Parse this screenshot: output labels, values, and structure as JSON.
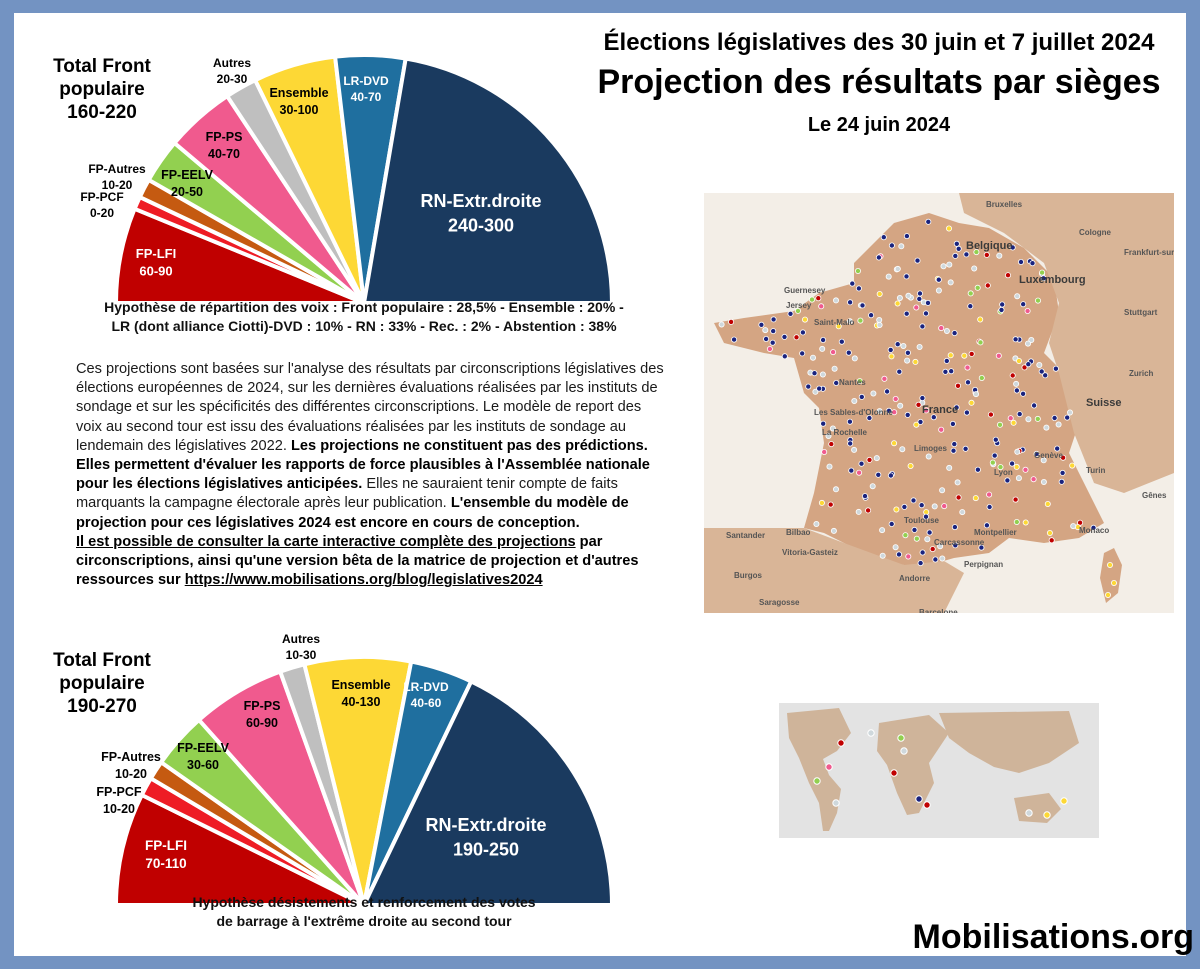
{
  "header": {
    "line1": "Élections législatives des 30 juin et 7 juillet 2024",
    "line2": "Projection des résultats par sièges",
    "line3": "Le 24 juin 2024"
  },
  "chart_data": [
    {
      "type": "pie",
      "subtype": "half-donut-parliament",
      "id": "premier-scenario",
      "total": {
        "line1": "Total Front",
        "line2": "populaire",
        "line3": "160-220"
      },
      "slices": [
        {
          "name": "FP-LFI",
          "range": "60-90",
          "low": 60,
          "high": 90,
          "value": 75,
          "color": "#c00000"
        },
        {
          "name": "FP-PCF",
          "range": "0-20",
          "low": 0,
          "high": 20,
          "value": 10,
          "color": "#ee1c25"
        },
        {
          "name": "FP-Autres",
          "range": "10-20",
          "low": 10,
          "high": 20,
          "value": 15,
          "color": "#c55a11"
        },
        {
          "name": "FP-EELV",
          "range": "20-50",
          "low": 20,
          "high": 50,
          "value": 35,
          "color": "#92d050"
        },
        {
          "name": "FP-PS",
          "range": "40-70",
          "low": 40,
          "high": 70,
          "value": 55,
          "color": "#f05a8e"
        },
        {
          "name": "Autres",
          "range": "20-30",
          "low": 20,
          "high": 30,
          "value": 25,
          "color": "#bfbfbf"
        },
        {
          "name": "Ensemble",
          "range": "30-100",
          "low": 30,
          "high": 100,
          "value": 65,
          "color": "#fdd835"
        },
        {
          "name": "LR-DVD",
          "range": "40-70",
          "low": 40,
          "high": 70,
          "value": 55,
          "color": "#1f6f9f"
        },
        {
          "name": "RN-Extr.droite",
          "range": "240-300",
          "low": 240,
          "high": 300,
          "value": 270,
          "color": "#1a3a5f"
        }
      ],
      "caption": [
        "Hypothèse de répartition des voix : Front populaire : 28,5% - Ensemble : 20% -",
        "LR (dont alliance Ciotti)-DVD : 10% - RN : 33% - Rec. : 2% - Abstention : 38%"
      ]
    },
    {
      "type": "pie",
      "subtype": "half-donut-parliament",
      "id": "second-scenario",
      "total": {
        "line1": "Total Front",
        "line2": "populaire",
        "line3": "190-270"
      },
      "slices": [
        {
          "name": "FP-LFI",
          "range": "70-110",
          "low": 70,
          "high": 110,
          "value": 90,
          "color": "#c00000"
        },
        {
          "name": "FP-PCF",
          "range": "10-20",
          "low": 10,
          "high": 20,
          "value": 15,
          "color": "#ee1c25"
        },
        {
          "name": "FP-Autres",
          "range": "10-20",
          "low": 10,
          "high": 20,
          "value": 15,
          "color": "#c55a11"
        },
        {
          "name": "FP-EELV",
          "range": "30-60",
          "low": 30,
          "high": 60,
          "value": 45,
          "color": "#92d050"
        },
        {
          "name": "FP-PS",
          "range": "60-90",
          "low": 60,
          "high": 90,
          "value": 75,
          "color": "#f05a8e"
        },
        {
          "name": "Autres",
          "range": "10-30",
          "low": 10,
          "high": 30,
          "value": 20,
          "color": "#bfbfbf"
        },
        {
          "name": "Ensemble",
          "range": "40-130",
          "low": 40,
          "high": 130,
          "value": 85,
          "color": "#fdd835"
        },
        {
          "name": "LR-DVD",
          "range": "40-60",
          "low": 40,
          "high": 60,
          "value": 50,
          "color": "#1f6f9f"
        },
        {
          "name": "RN-Extr.droite",
          "range": "190-250",
          "low": 190,
          "high": 250,
          "value": 220,
          "color": "#1a3a5f"
        }
      ],
      "caption": [
        "Hypothèse désistements et renforcement des votes",
        "de barrage à l'extrême droite au second tour"
      ]
    }
  ],
  "text": {
    "p1": "Ces projections sont basées sur l'analyse des résultats par circonscriptions législatives des élections européennes de 2024, sur les dernières évaluations réalisées par les instituts de sondage et sur les spécificités des différentes circonscriptions. Le modèle de report des voix au second tour est issu des évaluations réalisées par les instituts de sondage au lendemain des législatives 2022.",
    "b1": "Les projections ne constituent pas des prédictions. Elles permettent d'évaluer les rapports de force plausibles à l'Assemblée nationale pour les élections législatives anticipées.",
    "p2": "Elles ne sauraient tenir compte de faits marquants la campagne électorale après leur publication.",
    "b2": "L'ensemble du modèle de projection pour ces législatives 2024 est encore en cours de conception.",
    "link_intro": "Il est possible de consulter la carte interactive complète des projections",
    "link_rest": "par circonscriptions, ainsi qu'une version bêta de la matrice de projection et d'autres ressources sur",
    "url": "https://www.mobilisations.org/blog/legislatives2024"
  },
  "map": {
    "cities": [
      "Bruxelles",
      "Belgique",
      "Cologne",
      "Frankfurt-sur-le-M",
      "Luxembourg",
      "Guernesey",
      "Jersey",
      "Stuttgart",
      "Saint-Malo",
      "Zurich",
      "Nantes",
      "France",
      "Suisse",
      "Les Sables-d'Olonne",
      "La Rochelle",
      "Limoges",
      "Turin",
      "Gênes",
      "Bilbao",
      "Santander",
      "Vitoria-Gasteiz",
      "Burgos",
      "Toulouse",
      "Andorre",
      "Montpellier",
      "Saragosse",
      "Barcelone",
      "Monaco",
      "Carcassonne",
      "Perpignan",
      "Lyon",
      "Genève"
    ],
    "colors": {
      "land": "#d4a583",
      "sea": "#f2ede6",
      "rn": "#1a237e",
      "lfi": "#c00000",
      "ens": "#fdd835",
      "ps": "#f05a8e",
      "eelv": "#92d050",
      "other": "#cfd8dc"
    }
  },
  "footer": {
    "brand": "Mobilisations.org"
  }
}
